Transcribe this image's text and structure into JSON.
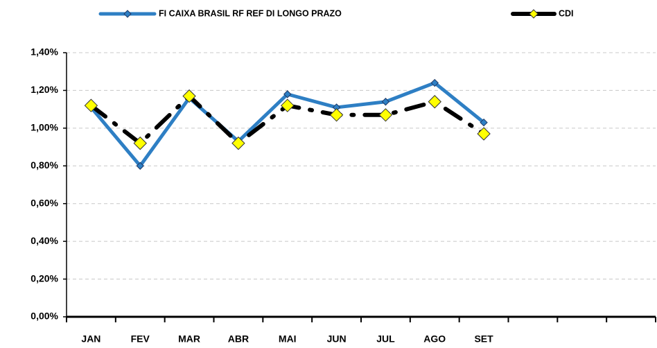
{
  "chart_data": {
    "type": "line",
    "categories": [
      "JAN",
      "FEV",
      "MAR",
      "ABR",
      "MAI",
      "JUN",
      "JUL",
      "AGO",
      "SET",
      null,
      null,
      null
    ],
    "series": [
      {
        "name": "FI CAIXA BRASIL RF REF DI LONGO PRAZO",
        "color": "#2e7fc4",
        "marker_color": "#2e7fc4",
        "values": [
          1.11,
          0.8,
          1.16,
          0.93,
          1.18,
          1.11,
          1.14,
          1.24,
          1.03,
          null,
          null,
          null
        ]
      },
      {
        "name": "CDI",
        "color": "#000000",
        "marker_color": "#ffff00",
        "values": [
          1.12,
          0.92,
          1.17,
          0.92,
          1.12,
          1.07,
          1.07,
          1.14,
          0.97,
          null,
          null,
          null
        ]
      }
    ],
    "ylim": [
      0,
      1.4
    ],
    "yticks": [
      {
        "value": 0,
        "label": "0,00%"
      },
      {
        "value": 0.2,
        "label": "0,20%"
      },
      {
        "value": 0.4,
        "label": "0,40%"
      },
      {
        "value": 0.6,
        "label": "0,60%"
      },
      {
        "value": 0.8,
        "label": "0,80%"
      },
      {
        "value": 1.0,
        "label": "1,00%"
      },
      {
        "value": 1.2,
        "label": "1,20%"
      },
      {
        "value": 1.4,
        "label": "1,40%"
      }
    ],
    "grid": true,
    "legend": "top"
  }
}
